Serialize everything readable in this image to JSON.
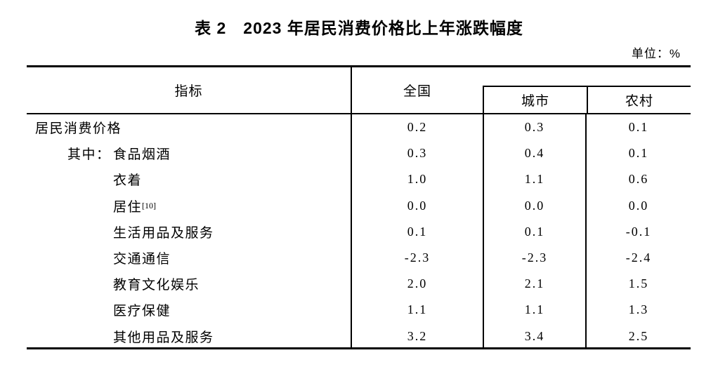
{
  "title": "表 2　2023 年居民消费价格比上年涨跌幅度",
  "unit_label": "单位：%",
  "table": {
    "header": {
      "indicator": "指标",
      "national": "全国",
      "urban": "城市",
      "rural": "农村"
    },
    "rows": [
      {
        "label": "居民消费价格",
        "prefix": "",
        "sup": "",
        "indent": 0,
        "national": "0.2",
        "urban": "0.3",
        "rural": "0.1"
      },
      {
        "label": "食品烟酒",
        "prefix": "其中：",
        "sup": "",
        "indent": 1,
        "national": "0.3",
        "urban": "0.4",
        "rural": "0.1"
      },
      {
        "label": "衣着",
        "prefix": "",
        "sup": "",
        "indent": 2,
        "national": "1.0",
        "urban": "1.1",
        "rural": "0.6"
      },
      {
        "label": "居住",
        "prefix": "",
        "sup": "[10]",
        "indent": 2,
        "national": "0.0",
        "urban": "0.0",
        "rural": "0.0"
      },
      {
        "label": "生活用品及服务",
        "prefix": "",
        "sup": "",
        "indent": 2,
        "national": "0.1",
        "urban": "0.1",
        "rural": "-0.1"
      },
      {
        "label": "交通通信",
        "prefix": "",
        "sup": "",
        "indent": 2,
        "national": "-2.3",
        "urban": "-2.3",
        "rural": "-2.4"
      },
      {
        "label": "教育文化娱乐",
        "prefix": "",
        "sup": "",
        "indent": 2,
        "national": "2.0",
        "urban": "2.1",
        "rural": "1.5"
      },
      {
        "label": "医疗保健",
        "prefix": "",
        "sup": "",
        "indent": 2,
        "national": "1.1",
        "urban": "1.1",
        "rural": "1.3"
      },
      {
        "label": "其他用品及服务",
        "prefix": "",
        "sup": "",
        "indent": 2,
        "national": "3.2",
        "urban": "3.4",
        "rural": "2.5"
      }
    ]
  }
}
